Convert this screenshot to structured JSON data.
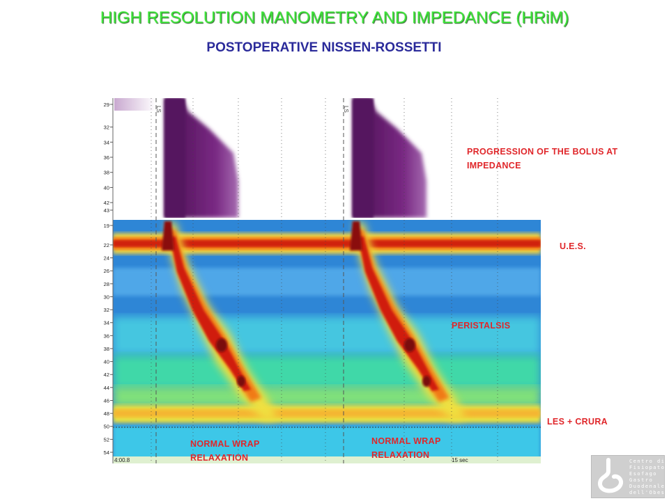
{
  "header": {
    "title": "HIGH RESOLUTION MANOMETRY AND IMPEDANCE (HRiM)",
    "subtitle": "POSTOPERATIVE NISSEN-ROSSETTI"
  },
  "annotations": {
    "bolus": "PROGRESSION OF THE BOLUS AT IMPEDANCE",
    "ues": "U.E.S.",
    "peristalsis": "PERISTALSIS",
    "les": "LES + CRURA",
    "wrap1": "NORMAL WRAP RELAXATION",
    "wrap2": "NORMAL WRAP RELAXATION"
  },
  "colors": {
    "title": "#3ee63a",
    "subtitle": "#2a2a9a",
    "annotation": "#e0262a",
    "impedance": "#6b1f6e",
    "background_pressure": "#2b7fd0"
  },
  "chart_data": [
    {
      "type": "heatmap",
      "panel": "impedance",
      "y_ticks": [
        "29",
        "32",
        "34",
        "36",
        "38",
        "40",
        "42",
        "43"
      ],
      "markers": [
        "LS",
        "LS"
      ]
    },
    {
      "type": "heatmap",
      "panel": "pressure",
      "y_ticks": [
        "19",
        "22",
        "24",
        "26",
        "28",
        "30",
        "32",
        "34",
        "36",
        "38",
        "40",
        "42",
        "44",
        "46",
        "48",
        "50",
        "52",
        "54"
      ],
      "x_ticks": [
        "4:00.8",
        "15 sec"
      ],
      "events": [
        "swallow 1",
        "swallow 2"
      ]
    }
  ],
  "logo": {
    "text": "Centro di\nFisiopatologia\nEsofago\nGastro\nDuodenale e\ndell'Obesità"
  }
}
